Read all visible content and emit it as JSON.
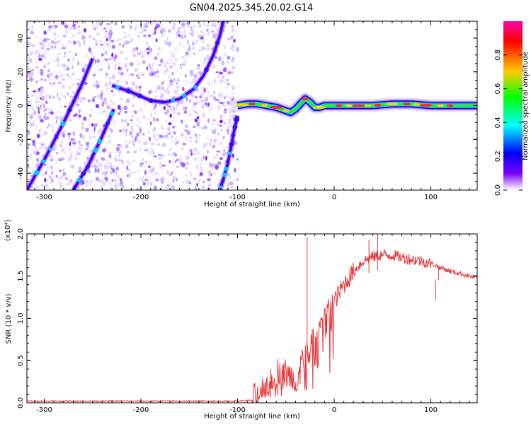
{
  "title": "GN04.2025.345.20.02.G14",
  "chart_data": [
    {
      "type": "heatmap",
      "xlabel": "Height of straight line (km)",
      "ylabel": "Frequency (Hz)",
      "xlim": [
        -318,
        148
      ],
      "ylim": [
        -50,
        50
      ],
      "x_ticks": [
        -300,
        -200,
        -100,
        0,
        100
      ],
      "y_ticks": [
        -40,
        -20,
        0,
        20,
        40
      ],
      "colorbar": {
        "label": "Normalized spectral amplitude",
        "range": [
          0,
          1
        ],
        "ticks": [
          0.0,
          0.2,
          0.4,
          0.6,
          0.8
        ],
        "colormap": [
          "#ff00aa",
          "#ff0000",
          "#ffcc00",
          "#00ff00",
          "#00ffff",
          "#0000ff",
          "#7700ff",
          "#ffffff"
        ]
      },
      "noise_region_x": [
        -318,
        -100
      ],
      "curves": [
        {
          "x": [
            -318,
            -300,
            -280,
            -260,
            -250
          ],
          "y": [
            -50,
            -32,
            -10,
            14,
            28
          ]
        },
        {
          "x": [
            -270,
            -255,
            -240,
            -228
          ],
          "y": [
            -50,
            -36,
            -18,
            -2
          ]
        },
        {
          "x": [
            -230,
            -210,
            -190,
            -175,
            -160,
            -145,
            -135,
            -125,
            -118,
            -115
          ],
          "y": [
            12,
            8,
            3,
            2,
            4,
            10,
            18,
            30,
            42,
            50
          ]
        },
        {
          "x": [
            -118,
            -110,
            -104,
            -100
          ],
          "y": [
            -50,
            -34,
            -16,
            -6
          ]
        },
        {
          "x": [
            -100,
            -90,
            -80,
            -70,
            -60,
            -50,
            -45,
            -40,
            -35,
            -30,
            -25,
            -20,
            -15,
            -10,
            0,
            20,
            40,
            60,
            80,
            100,
            120,
            148
          ],
          "y": [
            0,
            1,
            1,
            0,
            -1,
            -3,
            -4,
            -2,
            1,
            4,
            2,
            -1,
            -1,
            0,
            0,
            0,
            0,
            1,
            1,
            0,
            0,
            0
          ]
        }
      ]
    },
    {
      "type": "line",
      "xlabel": "Height of straight line (km)",
      "ylabel": "SNR (10 * v/v)",
      "y_multiplier": "(x10⁴)",
      "xlim": [
        -318,
        148
      ],
      "ylim": [
        0,
        2.0
      ],
      "x_ticks": [
        -300,
        -200,
        -100,
        0,
        100
      ],
      "y_ticks": [
        0.0,
        0.5,
        1.0,
        1.5,
        2.0
      ],
      "color": "#e8373a",
      "x": [
        -318,
        -250,
        -200,
        -150,
        -100,
        -85,
        -75,
        -65,
        -55,
        -45,
        -40,
        -35,
        -30,
        -25,
        -20,
        -10,
        0,
        10,
        20,
        30,
        40,
        50,
        60,
        70,
        80,
        90,
        100,
        110,
        120,
        130,
        140,
        148
      ],
      "y": [
        0.02,
        0.02,
        0.02,
        0.02,
        0.02,
        0.03,
        0.15,
        0.3,
        0.4,
        0.3,
        0.25,
        0.45,
        0.6,
        0.6,
        0.8,
        1.05,
        1.2,
        1.4,
        1.55,
        1.68,
        1.73,
        1.75,
        1.75,
        1.72,
        1.7,
        1.68,
        1.65,
        1.6,
        1.56,
        1.53,
        1.5,
        1.48
      ],
      "spikes": [
        {
          "x": -28,
          "y": 1.96
        },
        {
          "x": 45,
          "y": 2.0
        },
        {
          "x": 36,
          "y": 1.93
        },
        {
          "x": 105,
          "y": 1.22
        },
        {
          "x": 108,
          "y": 1.62
        }
      ]
    }
  ]
}
